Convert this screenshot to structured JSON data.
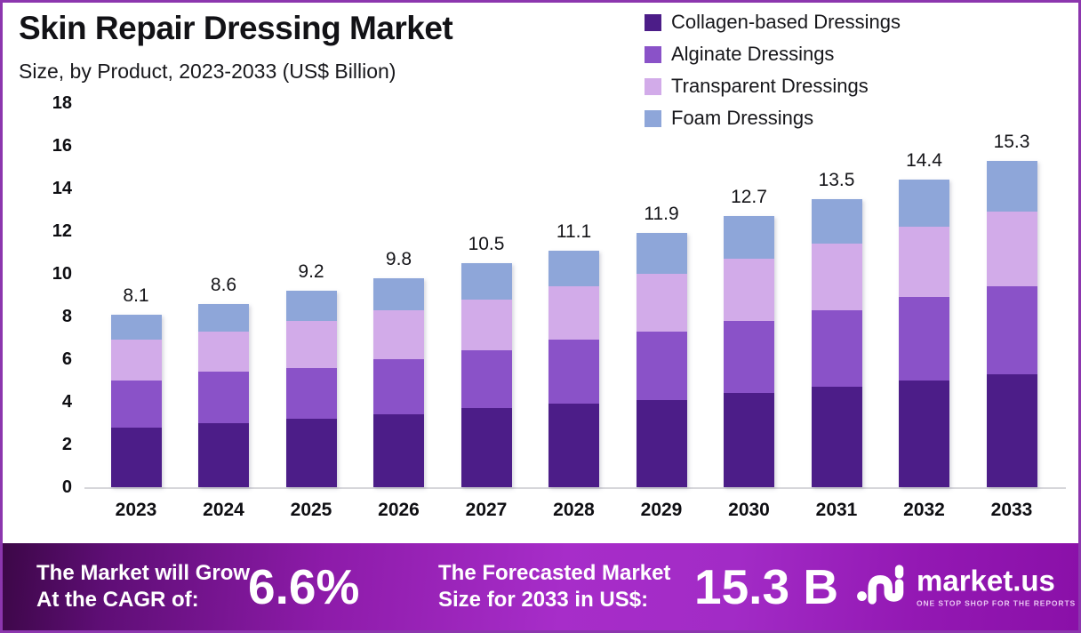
{
  "header": {
    "title": "Skin Repair Dressing Market",
    "subtitle": "Size, by Product, 2023-2033 (US$ Billion)"
  },
  "chart_data": {
    "type": "bar",
    "stacked": true,
    "title": "Skin Repair Dressing Market",
    "subtitle": "Size, by Product, 2023-2033 (US$ Billion)",
    "unit": "US$ Billion",
    "categories": [
      "2023",
      "2024",
      "2025",
      "2026",
      "2027",
      "2028",
      "2029",
      "2030",
      "2031",
      "2032",
      "2033"
    ],
    "series": [
      {
        "name": "Collagen-based Dressings",
        "color": "#4c1d88",
        "values": [
          2.8,
          3.0,
          3.2,
          3.4,
          3.7,
          3.9,
          4.1,
          4.4,
          4.7,
          5.0,
          5.3
        ]
      },
      {
        "name": "Alginate Dressings",
        "color": "#8a52c8",
        "values": [
          2.2,
          2.4,
          2.4,
          2.6,
          2.7,
          3.0,
          3.2,
          3.4,
          3.6,
          3.9,
          4.1
        ]
      },
      {
        "name": "Transparent Dressings",
        "color": "#d2abe9",
        "values": [
          1.9,
          1.9,
          2.2,
          2.3,
          2.4,
          2.5,
          2.7,
          2.9,
          3.1,
          3.3,
          3.5
        ]
      },
      {
        "name": "Foam Dressings",
        "color": "#8ea6d9",
        "values": [
          1.2,
          1.3,
          1.4,
          1.5,
          1.7,
          1.7,
          1.9,
          2.0,
          2.1,
          2.2,
          2.4
        ]
      }
    ],
    "totals": [
      8.1,
      8.6,
      9.2,
      9.8,
      10.5,
      11.1,
      11.9,
      12.7,
      13.5,
      14.4,
      15.3
    ],
    "ylim": [
      0,
      18
    ],
    "yticks": [
      0,
      2,
      4,
      6,
      8,
      10,
      12,
      14,
      16,
      18
    ],
    "grid": false,
    "legend_position": "top-right"
  },
  "footer": {
    "cagr_label_line1": "The Market will Grow",
    "cagr_label_line2": "At the CAGR of:",
    "cagr_value": "6.6%",
    "forecast_label_line1": "The Forecasted Market",
    "forecast_label_line2": "Size for 2033 in US$:",
    "forecast_value": "15.3 B",
    "brand_name": "market.us",
    "brand_tagline": "ONE STOP SHOP FOR THE REPORTS"
  },
  "colors": {
    "frame_border": "#8c36ae",
    "axis_line": "#d6d6da",
    "banner_gradient_start": "#3c0747",
    "banner_gradient_mid": "#a72dc9",
    "banner_gradient_end": "#8a10a8"
  }
}
